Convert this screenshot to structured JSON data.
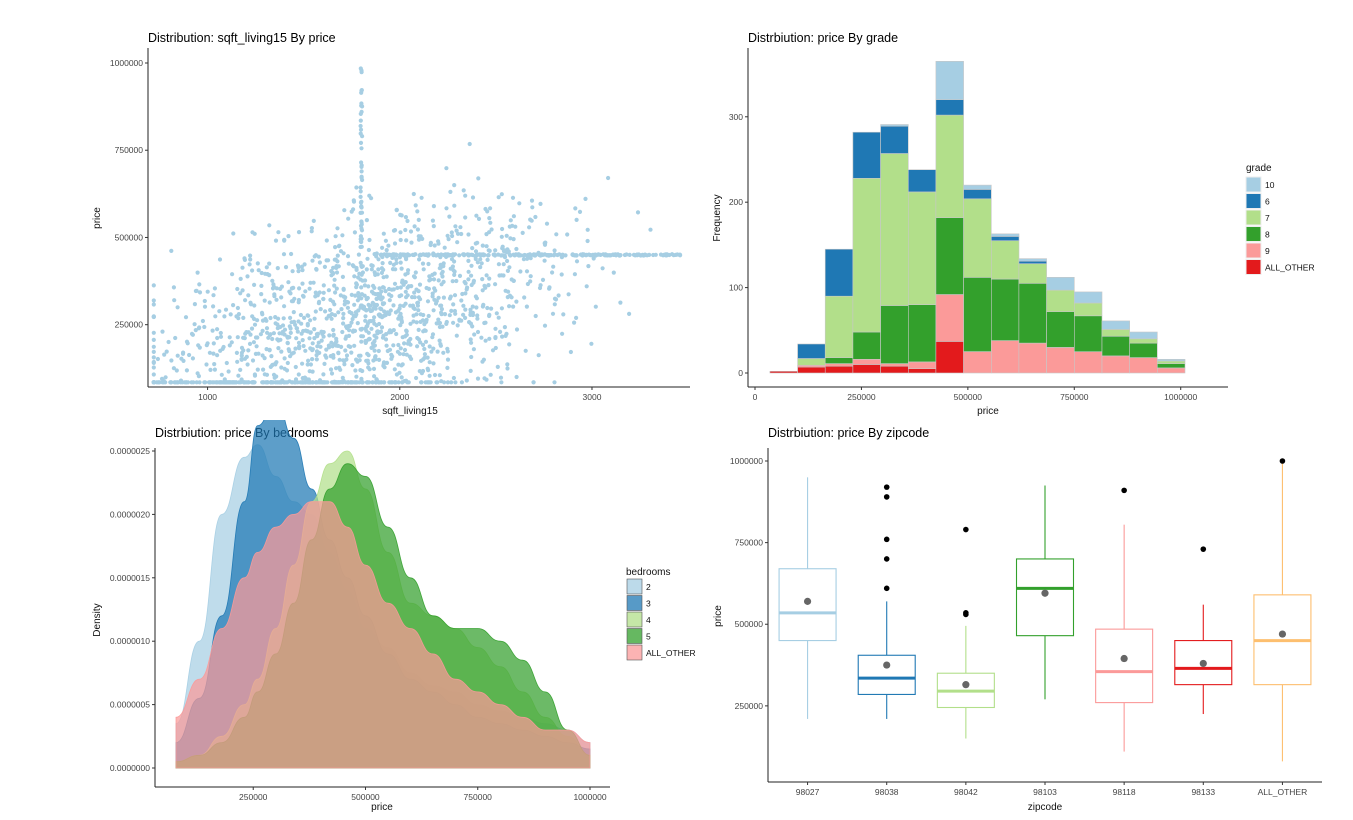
{
  "colors": {
    "c2": "#a6cee3",
    "c3": "#1f78b4",
    "c4": "#b2df8a",
    "c5": "#33a02c",
    "c6": "#fb9a99",
    "c7": "#e31a1c",
    "c8": "#fdbf6f",
    "point": "#a6cee3"
  },
  "chart_data": [
    {
      "type": "scatter",
      "title": "Distribution: sqft_living15 By price",
      "xlabel": "sqft_living15",
      "ylabel": "price",
      "xlim": [
        690,
        3510
      ],
      "ylim": [
        80000,
        1000000
      ],
      "xticks": [
        1000,
        2000,
        3000
      ],
      "xticklabels": [
        "1000",
        "2000",
        "3000"
      ],
      "yticks": [
        250000,
        500000,
        750000,
        1000000
      ],
      "yticklabels": [
        "250000",
        "500000",
        "750000",
        "1000000"
      ],
      "grid": false,
      "point_count": 1800,
      "note_band": "dense horizontal band near 450000 extending to 3500 sqft"
    },
    {
      "type": "bar",
      "stacked": true,
      "title": "Distrbiution: price By grade",
      "xlabel": "price",
      "ylabel": "Frequency",
      "xlim": [
        0,
        1050000
      ],
      "ylim": [
        0,
        370
      ],
      "xticks": [
        0,
        250000,
        500000,
        750000,
        1000000
      ],
      "xticklabels": [
        "0",
        "250000",
        "500000",
        "750000",
        "1000000"
      ],
      "yticks": [
        0,
        100,
        200,
        300
      ],
      "yticklabels": [
        "0",
        "100",
        "200",
        "300"
      ],
      "bin_width": 65000,
      "bin_starts": [
        35000,
        100000,
        165000,
        230000,
        295000,
        360000,
        425000,
        490000,
        555000,
        620000,
        685000,
        750000,
        815000,
        880000,
        945000
      ],
      "legend_title": "grade",
      "legend_position": "right",
      "series": [
        {
          "name": "ALL_OTHER",
          "values": [
            2,
            7,
            8,
            10,
            8,
            5,
            37,
            0,
            0,
            0,
            0,
            0,
            0,
            0,
            0
          ]
        },
        {
          "name": "9",
          "values": [
            0,
            2,
            3,
            6,
            3,
            8,
            55,
            25,
            38,
            35,
            30,
            25,
            20,
            18,
            6
          ]
        },
        {
          "name": "8",
          "values": [
            0,
            0,
            7,
            32,
            68,
            67,
            90,
            87,
            72,
            70,
            42,
            42,
            23,
            17,
            5
          ]
        },
        {
          "name": "7",
          "values": [
            0,
            8,
            72,
            180,
            178,
            132,
            120,
            92,
            45,
            23,
            25,
            15,
            8,
            5,
            3
          ]
        },
        {
          "name": "6",
          "values": [
            0,
            17,
            55,
            54,
            32,
            26,
            18,
            11,
            5,
            3,
            0,
            0,
            0,
            0,
            0
          ]
        },
        {
          "name": "10",
          "values": [
            0,
            0,
            0,
            0,
            2,
            0,
            45,
            5,
            3,
            3,
            15,
            13,
            10,
            8,
            2
          ]
        }
      ]
    },
    {
      "type": "area",
      "title": "Distrbiution: price By bedrooms",
      "xlabel": "price",
      "ylabel": "Density",
      "xlim": [
        78000,
        1000000
      ],
      "ylim": [
        0,
        2.5e-06
      ],
      "xticks": [
        250000,
        500000,
        750000,
        1000000
      ],
      "xticklabels": [
        "250000",
        "500000",
        "750000",
        "1000000"
      ],
      "yticks": [
        0,
        5e-07,
        1e-06,
        1.5e-06,
        2e-06,
        2.5e-06
      ],
      "yticklabels": [
        "0.0000000",
        "0.0000005",
        "0.0000010",
        "0.0000015",
        "0.0000020",
        "0.0000025"
      ],
      "x": [
        78000,
        130000,
        180000,
        230000,
        260000,
        300000,
        340000,
        380000,
        420000,
        460000,
        500000,
        550000,
        600000,
        650000,
        700000,
        750000,
        800000,
        850000,
        900000,
        950000,
        1000000
      ],
      "legend_title": "bedrooms",
      "legend_position": "right",
      "series": [
        {
          "name": "2",
          "values": [
            3.5e-07,
            1e-06,
            2e-06,
            2.45e-06,
            2.55e-06,
            2.3e-06,
            2.1e-06,
            2e-06,
            1.7e-06,
            1.4e-06,
            1.1e-06,
            9.5e-07,
            7.5e-07,
            6.5e-07,
            6e-07,
            5e-07,
            4.5e-07,
            4e-07,
            3.5e-07,
            3e-07,
            2e-07
          ]
        },
        {
          "name": "3",
          "values": [
            2e-07,
            5.5e-07,
            1.2e-06,
            2.1e-06,
            2.7e-06,
            2.9e-06,
            2.6e-06,
            2.2e-06,
            1.8e-06,
            1.5e-06,
            1.2e-06,
            9e-07,
            7e-07,
            6e-07,
            5e-07,
            4e-07,
            3.5e-07,
            3e-07,
            2.5e-07,
            2e-07,
            1.5e-07
          ]
        },
        {
          "name": "4",
          "values": [
            5e-08,
            1e-07,
            2.5e-07,
            5e-07,
            7e-07,
            1.1e-06,
            1.6e-06,
            2.1e-06,
            2.4e-06,
            2.5e-06,
            2.2e-06,
            1.7e-06,
            1.3e-06,
            1.2e-06,
            1.1e-06,
            9.5e-07,
            8e-07,
            6e-07,
            4e-07,
            2.5e-07,
            1e-07
          ]
        },
        {
          "name": "5",
          "values": [
            5e-08,
            1e-07,
            2e-07,
            4e-07,
            6e-07,
            9e-07,
            1.3e-06,
            1.8e-06,
            2.2e-06,
            2.4e-06,
            2.3e-06,
            1.9e-06,
            1.5e-06,
            1.2e-06,
            1.1e-06,
            1.1e-06,
            1e-06,
            8.5e-07,
            6e-07,
            3e-07,
            1e-07
          ]
        },
        {
          "name": "ALL_OTHER",
          "values": [
            4e-07,
            7e-07,
            1.1e-06,
            1.5e-06,
            1.7e-06,
            1.9e-06,
            2e-06,
            2.1e-06,
            2.1e-06,
            1.9e-06,
            1.6e-06,
            1.3e-06,
            1.1e-06,
            9e-07,
            7e-07,
            6e-07,
            5e-07,
            4e-07,
            3e-07,
            3e-07,
            2e-07
          ]
        }
      ]
    },
    {
      "type": "box",
      "title": "Distrbiution: price By zipcode",
      "xlabel": "zipcode",
      "ylabel": "price",
      "ylim": [
        75000,
        1000000
      ],
      "yticks": [
        250000,
        500000,
        750000,
        1000000
      ],
      "yticklabels": [
        "250000",
        "500000",
        "750000",
        "1000000"
      ],
      "categories": [
        "98027",
        "98038",
        "98042",
        "98103",
        "98118",
        "98133",
        "ALL_OTHER"
      ],
      "boxes": [
        {
          "q1": 450000,
          "median": 535000,
          "q3": 670000,
          "lower": 210000,
          "upper": 950000,
          "mean": 570000,
          "outliers": []
        },
        {
          "q1": 285000,
          "median": 335000,
          "q3": 405000,
          "lower": 210000,
          "upper": 570000,
          "mean": 375000,
          "outliers": [
            610000,
            700000,
            760000,
            890000,
            920000
          ]
        },
        {
          "q1": 245000,
          "median": 295000,
          "q3": 350000,
          "lower": 150000,
          "upper": 495000,
          "mean": 315000,
          "outliers": [
            530000,
            535000,
            790000
          ]
        },
        {
          "q1": 465000,
          "median": 610000,
          "q3": 700000,
          "lower": 270000,
          "upper": 925000,
          "mean": 595000,
          "outliers": []
        },
        {
          "q1": 260000,
          "median": 355000,
          "q3": 485000,
          "lower": 110000,
          "upper": 805000,
          "mean": 395000,
          "outliers": [
            910000
          ]
        },
        {
          "q1": 315000,
          "median": 365000,
          "q3": 450000,
          "lower": 225000,
          "upper": 560000,
          "mean": 380000,
          "outliers": [
            730000
          ]
        },
        {
          "q1": 315000,
          "median": 450000,
          "q3": 590000,
          "lower": 80000,
          "upper": 1000000,
          "mean": 470000,
          "outliers": [
            1000000
          ]
        }
      ]
    }
  ]
}
